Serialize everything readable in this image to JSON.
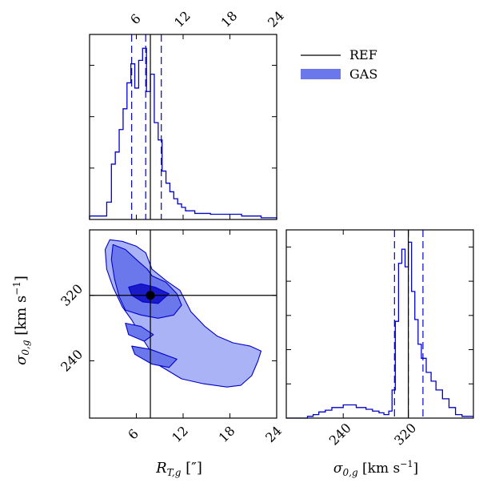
{
  "colors": {
    "ref_line": "#000000",
    "gas_edge": "#0000cc",
    "gas_fill_light": "#a9b3f5",
    "gas_fill_mid": "#6a78ec",
    "gas_fill_dark": "#1a1ac8",
    "peak_point": "#000000"
  },
  "chart_data": [
    {
      "type": "histogram",
      "panel": "R_T,g marginal (top-left)",
      "x": {
        "range": [
          0,
          24
        ],
        "ticks": [
          6,
          12,
          18,
          24
        ],
        "tick_labels": [
          "6",
          "12",
          "18",
          "24"
        ],
        "tick_labels_position": "top"
      },
      "bins": [
        {
          "x0": 0.0,
          "x1": 2.2,
          "v": 0.02
        },
        {
          "x0": 2.2,
          "x1": 2.8,
          "v": 0.1
        },
        {
          "x0": 2.8,
          "x1": 3.3,
          "v": 0.32
        },
        {
          "x0": 3.3,
          "x1": 3.8,
          "v": 0.39
        },
        {
          "x0": 3.8,
          "x1": 4.3,
          "v": 0.52
        },
        {
          "x0": 4.3,
          "x1": 4.8,
          "v": 0.64
        },
        {
          "x0": 4.8,
          "x1": 5.3,
          "v": 0.79
        },
        {
          "x0": 5.3,
          "x1": 5.8,
          "v": 0.9
        },
        {
          "x0": 5.8,
          "x1": 6.3,
          "v": 0.76
        },
        {
          "x0": 6.3,
          "x1": 6.8,
          "v": 0.92
        },
        {
          "x0": 6.8,
          "x1": 7.3,
          "v": 0.99
        },
        {
          "x0": 7.3,
          "x1": 7.8,
          "v": 0.74
        },
        {
          "x0": 7.8,
          "x1": 8.3,
          "v": 0.84
        },
        {
          "x0": 8.3,
          "x1": 8.8,
          "v": 0.56
        },
        {
          "x0": 8.8,
          "x1": 9.3,
          "v": 0.46
        },
        {
          "x0": 9.3,
          "x1": 9.8,
          "v": 0.28
        },
        {
          "x0": 9.8,
          "x1": 10.3,
          "v": 0.21
        },
        {
          "x0": 10.3,
          "x1": 10.8,
          "v": 0.16
        },
        {
          "x0": 10.8,
          "x1": 11.3,
          "v": 0.12
        },
        {
          "x0": 11.3,
          "x1": 11.8,
          "v": 0.09
        },
        {
          "x0": 11.8,
          "x1": 12.3,
          "v": 0.07
        },
        {
          "x0": 12.3,
          "x1": 13.5,
          "v": 0.05
        },
        {
          "x0": 13.5,
          "x1": 15.5,
          "v": 0.035
        },
        {
          "x0": 15.5,
          "x1": 19.5,
          "v": 0.03
        },
        {
          "x0": 19.5,
          "x1": 22.0,
          "v": 0.02
        },
        {
          "x0": 22.0,
          "x1": 24.0,
          "v": 0.01
        }
      ],
      "ymax": 1.0,
      "ref_line": 7.8,
      "quantile_lines": [
        5.4,
        7.2,
        9.2
      ],
      "y_tick_count": 3
    },
    {
      "type": "contour",
      "panel": "joint R_T,g vs sigma_0,g (bottom-left)",
      "x": {
        "range": [
          0,
          24
        ],
        "ticks": [
          6,
          12,
          18,
          24
        ],
        "tick_labels": [
          "6",
          "12",
          "18",
          "24"
        ]
      },
      "y": {
        "range": [
          170,
          400
        ],
        "ticks": [
          240,
          320
        ],
        "tick_labels": [
          "240",
          "320"
        ]
      },
      "xlabel": "R_{T,g} [″]",
      "ylabel": "σ_{0,g} [km s⁻¹]",
      "ref_lines": {
        "x": 7.8,
        "y": 320
      },
      "peak_point": [
        7.8,
        320
      ],
      "levels": [
        {
          "name": "outer",
          "polygons": [
            [
              [
                2.6,
                388
              ],
              [
                4.2,
                386
              ],
              [
                6.0,
                380
              ],
              [
                7.2,
                372
              ],
              [
                8.0,
                352
              ],
              [
                9.8,
                338
              ],
              [
                11.6,
                326
              ],
              [
                13.0,
                300
              ],
              [
                14.8,
                282
              ],
              [
                16.4,
                270
              ],
              [
                18.4,
                262
              ],
              [
                20.6,
                258
              ],
              [
                22.0,
                252
              ],
              [
                21.6,
                240
              ],
              [
                20.8,
                222
              ],
              [
                19.4,
                210
              ],
              [
                17.6,
                208
              ],
              [
                14.6,
                212
              ],
              [
                11.8,
                218
              ],
              [
                9.0,
                234
              ],
              [
                7.0,
                264
              ],
              [
                5.4,
                290
              ],
              [
                4.2,
                306
              ],
              [
                3.0,
                330
              ],
              [
                2.2,
                352
              ],
              [
                2.0,
                376
              ]
            ]
          ]
        },
        {
          "name": "middle",
          "polygons": [
            [
              [
                3.0,
                382
              ],
              [
                4.6,
                376
              ],
              [
                6.2,
                362
              ],
              [
                7.4,
                352
              ],
              [
                8.0,
                344
              ],
              [
                9.8,
                336
              ],
              [
                11.2,
                322
              ],
              [
                11.8,
                308
              ],
              [
                10.8,
                296
              ],
              [
                8.8,
                292
              ],
              [
                6.6,
                296
              ],
              [
                4.6,
                302
              ],
              [
                3.8,
                318
              ],
              [
                3.2,
                340
              ],
              [
                2.8,
                364
              ]
            ],
            [
              [
                4.6,
                286
              ],
              [
                6.6,
                282
              ],
              [
                8.2,
                272
              ],
              [
                7.0,
                264
              ],
              [
                5.0,
                272
              ]
            ],
            [
              [
                5.4,
                258
              ],
              [
                7.8,
                254
              ],
              [
                11.2,
                242
              ],
              [
                10.2,
                232
              ],
              [
                8.0,
                236
              ],
              [
                5.8,
                248
              ]
            ]
          ]
        },
        {
          "name": "inner",
          "polygons": [
            [
              [
                5.0,
                330
              ],
              [
                6.6,
                334
              ],
              [
                8.4,
                330
              ],
              [
                10.2,
                322
              ],
              [
                8.8,
                310
              ],
              [
                6.8,
                312
              ],
              [
                5.4,
                320
              ]
            ]
          ]
        }
      ]
    },
    {
      "type": "histogram",
      "panel": "sigma_0,g marginal (bottom-right)",
      "x": {
        "range": [
          170,
          400
        ],
        "ticks": [
          240,
          320
        ],
        "tick_labels": [
          "240",
          "320"
        ]
      },
      "xlabel": "σ_{0,g} [km s⁻¹]",
      "bins": [
        {
          "x0": 170,
          "x1": 196,
          "v": 0.0
        },
        {
          "x0": 196,
          "x1": 203,
          "v": 0.01
        },
        {
          "x0": 203,
          "x1": 210,
          "v": 0.02
        },
        {
          "x0": 210,
          "x1": 218,
          "v": 0.035
        },
        {
          "x0": 218,
          "x1": 226,
          "v": 0.045
        },
        {
          "x0": 226,
          "x1": 240,
          "v": 0.06
        },
        {
          "x0": 240,
          "x1": 256,
          "v": 0.075
        },
        {
          "x0": 256,
          "x1": 268,
          "v": 0.06
        },
        {
          "x0": 268,
          "x1": 276,
          "v": 0.05
        },
        {
          "x0": 276,
          "x1": 284,
          "v": 0.04
        },
        {
          "x0": 284,
          "x1": 290,
          "v": 0.03
        },
        {
          "x0": 290,
          "x1": 296,
          "v": 0.02
        },
        {
          "x0": 296,
          "x1": 300,
          "v": 0.04
        },
        {
          "x0": 300,
          "x1": 304,
          "v": 0.16
        },
        {
          "x0": 304,
          "x1": 308,
          "v": 0.55
        },
        {
          "x0": 308,
          "x1": 312,
          "v": 0.88
        },
        {
          "x0": 312,
          "x1": 316,
          "v": 0.96
        },
        {
          "x0": 316,
          "x1": 320,
          "v": 0.86
        },
        {
          "x0": 320,
          "x1": 324,
          "v": 1.0
        },
        {
          "x0": 324,
          "x1": 328,
          "v": 0.72
        },
        {
          "x0": 328,
          "x1": 332,
          "v": 0.56
        },
        {
          "x0": 332,
          "x1": 336,
          "v": 0.42
        },
        {
          "x0": 336,
          "x1": 342,
          "v": 0.34
        },
        {
          "x0": 342,
          "x1": 348,
          "v": 0.26
        },
        {
          "x0": 348,
          "x1": 354,
          "v": 0.21
        },
        {
          "x0": 354,
          "x1": 362,
          "v": 0.16
        },
        {
          "x0": 362,
          "x1": 370,
          "v": 0.11
        },
        {
          "x0": 370,
          "x1": 378,
          "v": 0.06
        },
        {
          "x0": 378,
          "x1": 386,
          "v": 0.02
        },
        {
          "x0": 386,
          "x1": 400,
          "v": 0.01
        }
      ],
      "ymax": 1.0,
      "ref_line": 320,
      "quantile_lines": [
        303,
        320,
        338
      ],
      "y_tick_count": 5
    }
  ],
  "legend": {
    "placement": "top-right",
    "entries": [
      {
        "label": "REF",
        "style": "line"
      },
      {
        "label": "GAS",
        "style": "patch"
      }
    ]
  }
}
